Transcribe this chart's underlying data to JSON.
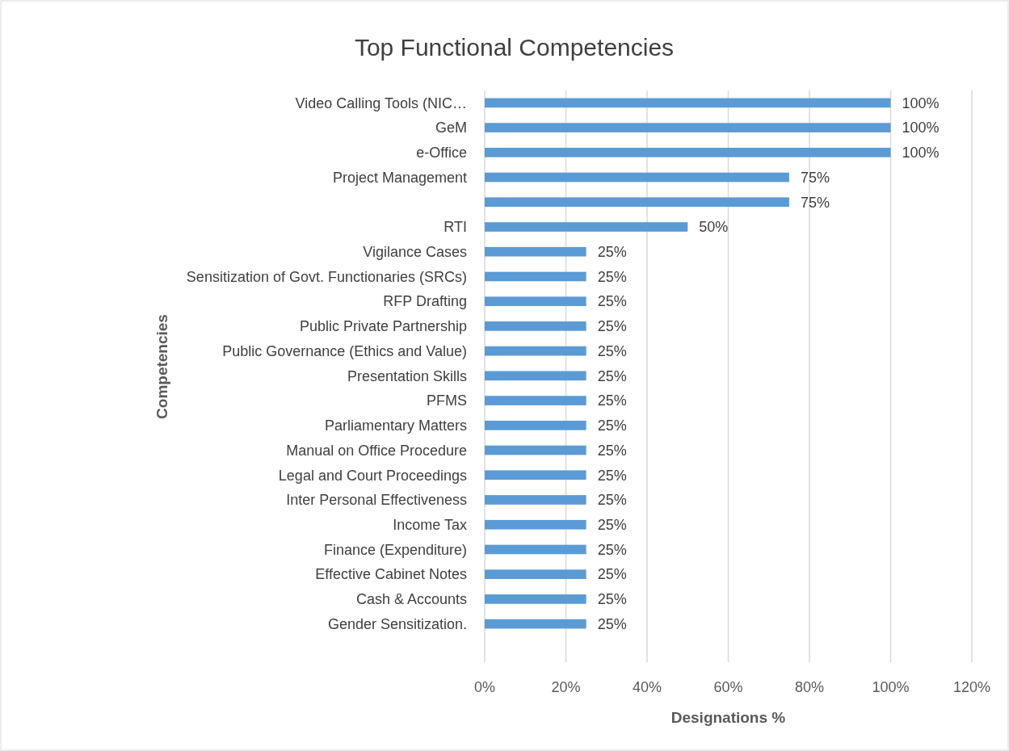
{
  "chart_data": {
    "type": "bar",
    "orientation": "horizontal",
    "title": "Top Functional Competencies",
    "xlabel": "Designations %",
    "ylabel": "Competencies",
    "categories": [
      "Video Calling Tools (NIC…",
      "GeM",
      "e-Office",
      "Project Management",
      null,
      "RTI",
      "Vigilance Cases",
      "Sensitization of Govt. Functionaries (SRCs)",
      "RFP Drafting",
      "Public Private Partnership",
      "Public Governance (Ethics and Value)",
      "Presentation Skills",
      "PFMS",
      "Parliamentary Matters",
      "Manual on Office Procedure",
      "Legal and Court Proceedings",
      "Inter Personal Effectiveness",
      "Income Tax",
      "Finance (Expenditure)",
      "Effective Cabinet Notes",
      "Cash & Accounts",
      "Gender Sensitization."
    ],
    "values": [
      100,
      100,
      100,
      75,
      75,
      50,
      25,
      25,
      25,
      25,
      25,
      25,
      25,
      25,
      25,
      25,
      25,
      25,
      25,
      25,
      25,
      25
    ],
    "value_labels": [
      "100%",
      "100%",
      "100%",
      "75%",
      "75%",
      "50%",
      "25%",
      "25%",
      "25%",
      "25%",
      "25%",
      "25%",
      "25%",
      "25%",
      "25%",
      "25%",
      "25%",
      "25%",
      "25%",
      "25%",
      "25%",
      "25%"
    ],
    "color": "#5b9bd5",
    "xlim": [
      0,
      120
    ],
    "xticks": [
      {
        "value": 0,
        "label": "0%"
      },
      {
        "value": 20,
        "label": "20%"
      },
      {
        "value": 40,
        "label": "40%"
      },
      {
        "value": 60,
        "label": "60%"
      },
      {
        "value": 80,
        "label": "80%"
      },
      {
        "value": 100,
        "label": "100%"
      },
      {
        "value": 120,
        "label": "120%"
      }
    ],
    "grid": "x"
  }
}
